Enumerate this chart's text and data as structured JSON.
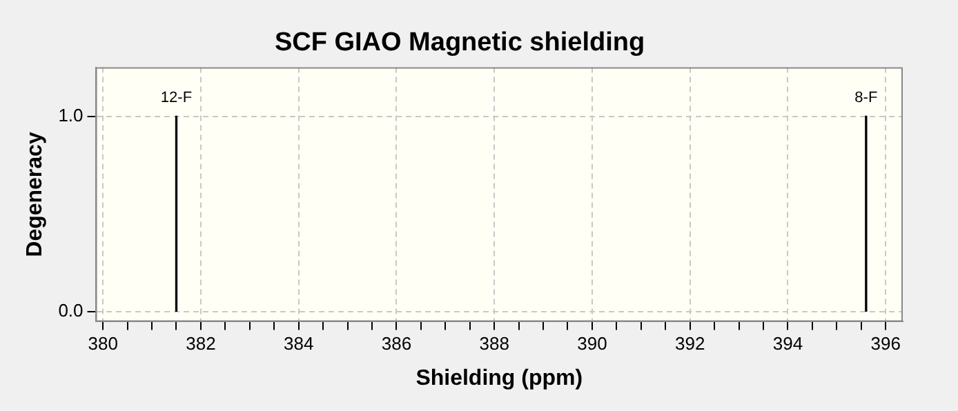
{
  "chart_data": {
    "type": "bar",
    "title": "SCF GIAO Magnetic shielding",
    "xlabel": "Shielding (ppm)",
    "ylabel": "Degeneracy",
    "x": [
      381.5,
      395.6
    ],
    "values": [
      1.0,
      1.0
    ],
    "color": "#000000",
    "xlim": [
      379.85,
      396.35
    ],
    "xticks": [
      380,
      {
        "value": 380.5,
        "label": null
      },
      {
        "value": 381,
        "label": null
      },
      {
        "value": 381.5,
        "label": null
      },
      382,
      {
        "value": 382.5,
        "label": null
      },
      {
        "value": 383,
        "label": null
      },
      {
        "value": 383.5,
        "label": null
      },
      384,
      {
        "value": 384.5,
        "label": null
      },
      {
        "value": 385,
        "label": null
      },
      {
        "value": 385.5,
        "label": null
      },
      386,
      {
        "value": 386.5,
        "label": null
      },
      {
        "value": 387,
        "label": null
      },
      {
        "value": 387.5,
        "label": null
      },
      388,
      {
        "value": 388.5,
        "label": null
      },
      {
        "value": 389,
        "label": null
      },
      {
        "value": 389.5,
        "label": null
      },
      390,
      {
        "value": 390.5,
        "label": null
      },
      {
        "value": 391,
        "label": null
      },
      {
        "value": 391.5,
        "label": null
      },
      392,
      {
        "value": 392.5,
        "label": null
      },
      {
        "value": 393,
        "label": null
      },
      {
        "value": 393.5,
        "label": null
      },
      394,
      {
        "value": 394.5,
        "label": null
      },
      {
        "value": 395,
        "label": null
      },
      {
        "value": 395.5,
        "label": null
      },
      396
    ],
    "ylim": [
      -0.05,
      1.25
    ],
    "yticks": [
      {
        "value": 0,
        "label": "0.0"
      },
      {
        "value": 1,
        "label": "1.0"
      }
    ],
    "grid": true,
    "annotations": [
      {
        "text": "12-F",
        "x": 381.5,
        "y": 1.0
      },
      {
        "text": "8-F",
        "x": 395.6,
        "y": 1.0
      }
    ]
  }
}
